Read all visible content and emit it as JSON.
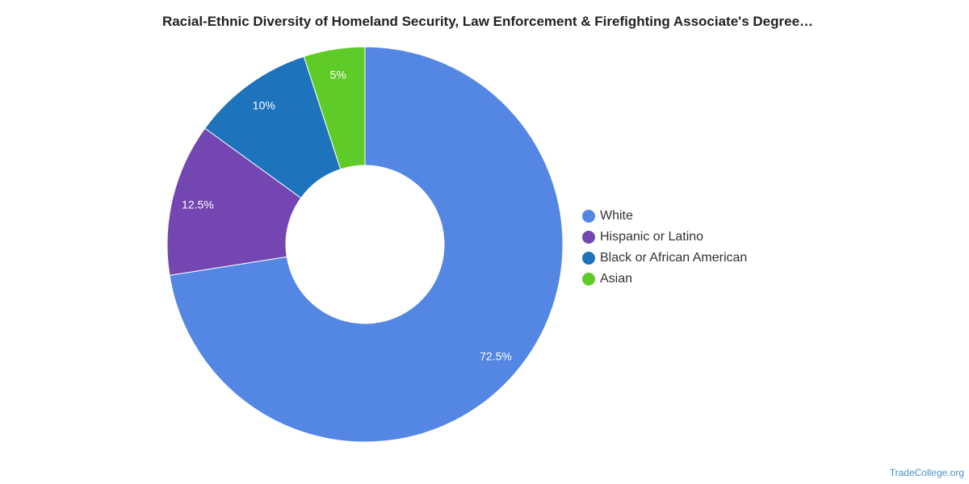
{
  "chart_data": {
    "type": "pie",
    "title": "Racial-Ethnic Diversity of Homeland Security, Law Enforcement & Firefighting Associate's Degree…",
    "donut": true,
    "legend_position": "right",
    "slices": [
      {
        "name": "White",
        "value": 72.5,
        "label": "72.5%",
        "color": "#5486e3"
      },
      {
        "name": "Hispanic or Latino",
        "value": 12.5,
        "label": "12.5%",
        "color": "#7446b1"
      },
      {
        "name": "Black or African American",
        "value": 10,
        "label": "10%",
        "color": "#1e73bd"
      },
      {
        "name": "Asian",
        "value": 5,
        "label": "5%",
        "color": "#5ecb26"
      }
    ]
  },
  "credit": "TradeCollege.org"
}
